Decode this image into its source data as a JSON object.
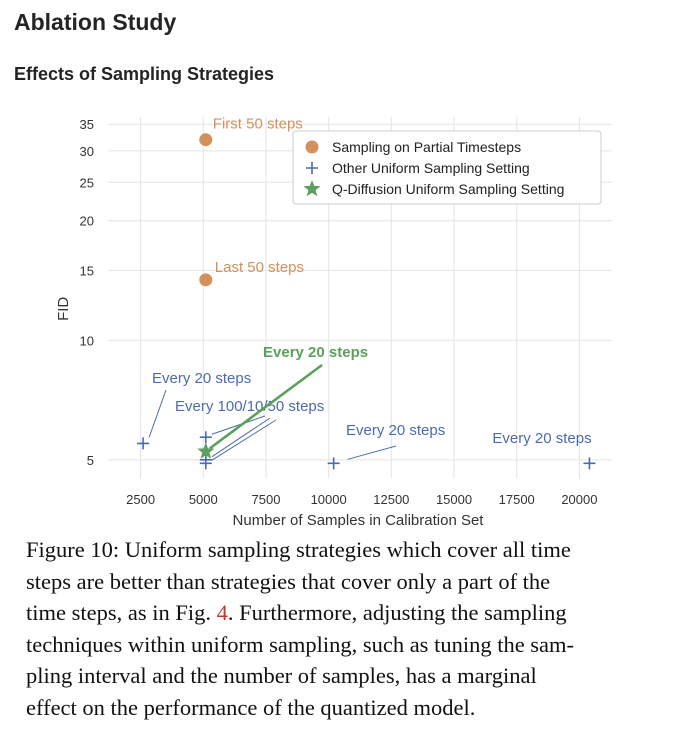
{
  "page": {
    "section_title": "Ablation Study",
    "subsection_title": "Effects of Sampling Strategies"
  },
  "chart_data": {
    "type": "scatter",
    "title": "",
    "xlabel": "Number of Samples in Calibration Set",
    "ylabel": "FID",
    "y_scale": "log",
    "xlim": [
      1200,
      21300
    ],
    "ylim": [
      4.5,
      36.5
    ],
    "xticks": [
      2500,
      5000,
      7500,
      10000,
      12500,
      15000,
      17500,
      20000
    ],
    "yticks": [
      5,
      10,
      15,
      20,
      25,
      30,
      35
    ],
    "grid": true,
    "legend_position": "top-right",
    "series": [
      {
        "name": "Sampling on Partial Timesteps",
        "marker": "circle",
        "color": "#d4905c",
        "points": [
          {
            "x": 5100,
            "y": 32.0,
            "label": "First 50 steps"
          },
          {
            "x": 5100,
            "y": 14.2,
            "label": "Last 50 steps"
          }
        ]
      },
      {
        "name": "Other Uniform Sampling Setting",
        "marker": "plus",
        "color": "#4c6bae",
        "points": [
          {
            "x": 2600,
            "y": 5.5,
            "label": "Every 20 steps"
          },
          {
            "x": 5100,
            "y": 5.7,
            "label": ""
          },
          {
            "x": 5100,
            "y": 5.0,
            "label": ""
          },
          {
            "x": 5100,
            "y": 4.9,
            "label": ""
          },
          {
            "x": 10200,
            "y": 4.9,
            "label": "Every 20 steps"
          },
          {
            "x": 20400,
            "y": 4.9,
            "label": "Every 20 steps"
          }
        ]
      },
      {
        "name": "Q-Diffusion Uniform Sampling Setting",
        "marker": "star",
        "color": "#5da05d",
        "points": [
          {
            "x": 5100,
            "y": 5.25,
            "label": "Every 20 steps"
          }
        ]
      }
    ],
    "annotations": [
      {
        "text": "Every 100/10/50 steps",
        "color": "#4c6bae",
        "targets": [
          {
            "x": 5100,
            "y": 5.7
          },
          {
            "x": 5100,
            "y": 5.0
          },
          {
            "x": 5100,
            "y": 4.9
          }
        ]
      }
    ]
  },
  "caption": {
    "lines": [
      {
        "parts": [
          {
            "text": "Figure 10: Uniform sampling strategies which cover all time",
            "link": false
          }
        ]
      },
      {
        "parts": [
          {
            "text": "steps are better than strategies that cover only a part of the",
            "link": false
          }
        ]
      },
      {
        "parts": [
          {
            "text": "time steps, as in Fig. ",
            "link": false
          },
          {
            "text": "4",
            "link": true
          },
          {
            "text": ". Furthermore, adjusting the sampling",
            "link": false
          }
        ]
      },
      {
        "parts": [
          {
            "text": "techniques within uniform sampling, such as tuning the sam-",
            "link": false
          }
        ]
      },
      {
        "parts": [
          {
            "text": "pling interval and the number of samples, has a marginal",
            "link": false
          }
        ]
      },
      {
        "parts": [
          {
            "text": "effect on the performance of the quantized model.",
            "link": false
          }
        ]
      }
    ]
  }
}
